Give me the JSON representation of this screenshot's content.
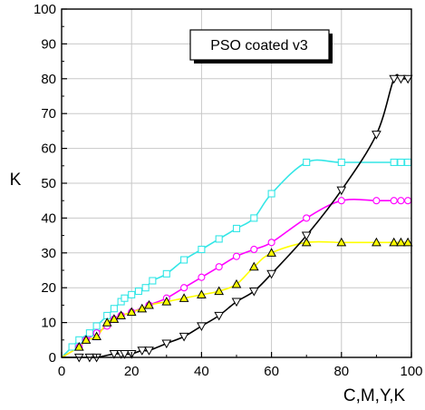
{
  "chart_data": {
    "type": "line",
    "title": "",
    "xlabel": "C,M,Y,K",
    "ylabel": "K",
    "xlim": [
      0,
      100
    ],
    "ylim": [
      0,
      100
    ],
    "x_ticks": [
      0,
      20,
      40,
      60,
      80,
      100
    ],
    "y_ticks": [
      0,
      10,
      20,
      30,
      40,
      50,
      60,
      70,
      80,
      90,
      100
    ],
    "grid": true,
    "legend_box_text": "PSO coated v3",
    "legend_placement": "top-center",
    "series": [
      {
        "color": "#33e6e6",
        "marker": "square",
        "points": [
          [
            0,
            0
          ],
          [
            3,
            3
          ],
          [
            5,
            5
          ],
          [
            8,
            7
          ],
          [
            10,
            9
          ],
          [
            13,
            12
          ],
          [
            15,
            14
          ],
          [
            17,
            16
          ],
          [
            18,
            17
          ],
          [
            20,
            18
          ],
          [
            22,
            19
          ],
          [
            24,
            20
          ],
          [
            26,
            22
          ],
          [
            30,
            24
          ],
          [
            35,
            28
          ],
          [
            40,
            31
          ],
          [
            45,
            34
          ],
          [
            50,
            37
          ],
          [
            55,
            40
          ],
          [
            60,
            47
          ],
          [
            70,
            56
          ],
          [
            80,
            56
          ],
          [
            95,
            56
          ],
          [
            97,
            56
          ],
          [
            99,
            56
          ]
        ]
      },
      {
        "color": "#ff00ff",
        "marker": "circle",
        "points": [
          [
            0,
            0
          ],
          [
            5,
            3
          ],
          [
            7,
            5
          ],
          [
            10,
            7
          ],
          [
            13,
            9
          ],
          [
            15,
            11
          ],
          [
            17,
            12
          ],
          [
            20,
            13
          ],
          [
            25,
            15
          ],
          [
            30,
            17
          ],
          [
            35,
            20
          ],
          [
            40,
            23
          ],
          [
            45,
            26
          ],
          [
            50,
            29
          ],
          [
            55,
            31
          ],
          [
            60,
            33
          ],
          [
            70,
            40
          ],
          [
            80,
            45
          ],
          [
            90,
            45
          ],
          [
            95,
            45
          ],
          [
            97,
            45
          ],
          [
            99,
            45
          ]
        ]
      },
      {
        "color": "#ffff00",
        "marker": "triangle-up",
        "points": [
          [
            0,
            0
          ],
          [
            5,
            3
          ],
          [
            7,
            5
          ],
          [
            10,
            6
          ],
          [
            13,
            10
          ],
          [
            15,
            11
          ],
          [
            17,
            12
          ],
          [
            20,
            13
          ],
          [
            23,
            14
          ],
          [
            25,
            15
          ],
          [
            30,
            16
          ],
          [
            35,
            17
          ],
          [
            40,
            18
          ],
          [
            45,
            19
          ],
          [
            50,
            21
          ],
          [
            55,
            26
          ],
          [
            60,
            30
          ],
          [
            70,
            33
          ],
          [
            80,
            33
          ],
          [
            90,
            33
          ],
          [
            95,
            33
          ],
          [
            97,
            33
          ],
          [
            99,
            33
          ]
        ]
      },
      {
        "color": "#000000",
        "marker": "triangle-down",
        "points": [
          [
            0,
            0
          ],
          [
            5,
            0
          ],
          [
            8,
            0
          ],
          [
            10,
            0
          ],
          [
            15,
            1
          ],
          [
            17,
            1
          ],
          [
            18,
            1
          ],
          [
            20,
            1
          ],
          [
            23,
            2
          ],
          [
            25,
            2
          ],
          [
            30,
            4
          ],
          [
            35,
            6
          ],
          [
            40,
            9
          ],
          [
            45,
            12
          ],
          [
            50,
            16
          ],
          [
            55,
            19
          ],
          [
            60,
            24
          ],
          [
            70,
            35
          ],
          [
            80,
            48
          ],
          [
            90,
            64
          ],
          [
            95,
            80
          ],
          [
            97,
            80
          ],
          [
            99,
            80
          ]
        ]
      }
    ]
  }
}
